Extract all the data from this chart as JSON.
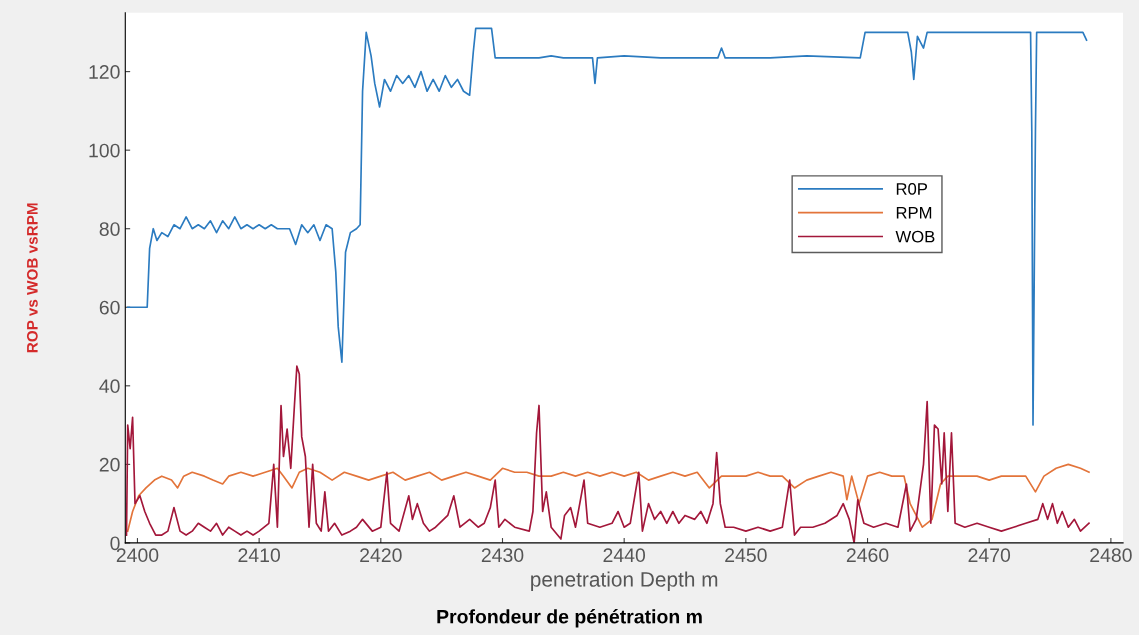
{
  "chart_data": {
    "type": "line",
    "xlabel": "penetration Depth m",
    "ylabel": "ROP vs WOB vsRPM",
    "annotations": [
      "Profondeur de pénétration m"
    ],
    "xlim": [
      2399,
      2481
    ],
    "ylim": [
      0,
      135
    ],
    "xticks": [
      2400,
      2410,
      2420,
      2430,
      2440,
      2450,
      2460,
      2470,
      2480
    ],
    "yticks": [
      0,
      20,
      40,
      60,
      80,
      100,
      120
    ],
    "grid": false,
    "legend": "right",
    "marker": "none",
    "line_style": "solid",
    "series": [
      {
        "name": "R0P",
        "color": "#2b7bc0",
        "x": [
          2399.2,
          2400.8,
          2401.0,
          2401.3,
          2401.6,
          2402,
          2402.5,
          2403,
          2403.5,
          2404,
          2404.5,
          2405,
          2405.5,
          2406,
          2406.5,
          2407,
          2407.5,
          2408,
          2408.5,
          2409,
          2409.5,
          2410,
          2410.5,
          2411,
          2411.5,
          2412,
          2412.5,
          2413,
          2413.5,
          2414,
          2414.5,
          2415,
          2415.5,
          2416,
          2416.3,
          2416.5,
          2416.8,
          2417.1,
          2417.5,
          2418,
          2418.3,
          2418.5,
          2418.8,
          2419.2,
          2419.5,
          2419.9,
          2420.3,
          2420.8,
          2421.3,
          2421.8,
          2422.3,
          2422.8,
          2423.3,
          2423.8,
          2424.3,
          2424.8,
          2425.3,
          2425.8,
          2426.3,
          2426.8,
          2427.3,
          2427.6,
          2427.8,
          2429.1,
          2429.4,
          2433,
          2434,
          2435,
          2437.4,
          2437.6,
          2437.8,
          2440,
          2443,
          2447.7,
          2448,
          2448.3,
          2452,
          2455,
          2459.4,
          2459.8,
          2463.3,
          2463.6,
          2463.8,
          2464.1,
          2464.6,
          2464.9,
          2473.4,
          2473.5,
          2473.6,
          2473.8,
          2473.9,
          2477.7,
          2478
        ],
        "values": [
          60,
          60,
          75,
          80,
          77,
          79,
          78,
          81,
          80,
          83,
          80,
          81,
          80,
          82,
          79,
          82,
          80,
          83,
          80,
          81,
          80,
          81,
          80,
          81,
          80,
          80,
          80,
          76,
          81,
          79,
          81,
          77,
          81,
          80,
          69,
          55,
          46,
          74,
          79,
          80,
          81,
          115,
          130,
          124,
          117,
          111,
          118,
          115,
          119,
          117,
          119,
          116,
          120,
          115,
          118,
          115,
          119,
          116,
          118,
          115,
          114,
          125,
          131,
          131,
          123.5,
          123.5,
          124,
          123.5,
          123.5,
          117,
          123.5,
          124,
          123.5,
          123.5,
          126,
          123.5,
          123.5,
          124,
          123.5,
          130,
          130,
          125,
          118,
          129,
          126,
          130,
          130,
          105,
          30,
          105,
          130,
          130,
          128
        ]
      },
      {
        "name": "RPM",
        "color": "#e3743a",
        "x": [
          2399.2,
          2399.6,
          2400.1,
          2400.7,
          2401.4,
          2402,
          2402.8,
          2403.3,
          2403.8,
          2404.5,
          2405.5,
          2406.2,
          2407,
          2407.5,
          2408.5,
          2409.5,
          2410.5,
          2411.5,
          2412,
          2412.7,
          2413.3,
          2414,
          2415,
          2416,
          2417,
          2418,
          2419,
          2420,
          2421,
          2422,
          2423,
          2424,
          2425,
          2426,
          2427,
          2428,
          2429,
          2430,
          2431,
          2432,
          2433,
          2434,
          2435,
          2436,
          2437,
          2438,
          2439,
          2440,
          2441,
          2442,
          2443,
          2444,
          2445,
          2446,
          2447,
          2448,
          2449,
          2450,
          2451,
          2452,
          2453,
          2454,
          2455,
          2456,
          2457,
          2458,
          2458.3,
          2458.7,
          2459.3,
          2460,
          2461,
          2462,
          2463,
          2463.5,
          2464.5,
          2465.3,
          2466,
          2466.6,
          2468,
          2469,
          2470,
          2471,
          2472,
          2473,
          2473.8,
          2474.5,
          2475.5,
          2476.5,
          2477.5,
          2478.2
        ],
        "values": [
          3,
          8,
          12,
          14,
          16,
          17,
          16,
          14,
          17,
          18,
          17,
          16,
          15,
          17,
          18,
          17,
          18,
          19,
          17,
          14,
          18,
          19,
          18,
          16,
          18,
          17,
          16,
          17,
          18,
          16,
          17,
          18,
          16,
          17,
          18,
          17,
          16,
          19,
          18,
          18,
          17,
          17,
          18,
          17,
          18,
          17,
          18,
          17,
          18,
          16,
          17,
          18,
          17,
          18,
          14,
          17,
          17,
          17,
          18,
          17,
          17,
          14,
          16,
          17,
          18,
          17,
          11,
          17,
          10,
          17,
          18,
          17,
          17,
          10,
          4,
          6,
          15,
          17,
          17,
          17,
          16,
          17,
          17,
          17,
          13,
          17,
          19,
          20,
          19,
          18
        ]
      },
      {
        "name": "WOB",
        "color": "#a3173a",
        "x": [
          2399.1,
          2399.2,
          2399.4,
          2399.6,
          2399.8,
          2400.2,
          2400.6,
          2401,
          2401.5,
          2402,
          2402.5,
          2403,
          2403.5,
          2404,
          2404.5,
          2405,
          2405.5,
          2406,
          2406.5,
          2407,
          2407.5,
          2408,
          2408.5,
          2409,
          2409.5,
          2410,
          2410.8,
          2411.2,
          2411.5,
          2411.8,
          2412,
          2412.3,
          2412.6,
          2412.9,
          2413.1,
          2413.3,
          2413.5,
          2413.8,
          2414.1,
          2414.4,
          2414.7,
          2415.1,
          2415.4,
          2415.7,
          2416.2,
          2416.8,
          2417.5,
          2418,
          2418.5,
          2419.3,
          2420,
          2420.5,
          2420.8,
          2421.5,
          2422.3,
          2422.6,
          2423,
          2423.5,
          2424,
          2424.5,
          2425.5,
          2426,
          2426.5,
          2427.3,
          2428,
          2428.5,
          2429,
          2429.4,
          2429.7,
          2430.2,
          2431,
          2432.2,
          2432.5,
          2432.8,
          2433,
          2433.3,
          2433.6,
          2434,
          2434.8,
          2435.1,
          2435.6,
          2436,
          2436.7,
          2437,
          2438,
          2439,
          2439.5,
          2440,
          2440.5,
          2441.2,
          2441.5,
          2442,
          2442.5,
          2443,
          2443.5,
          2444,
          2444.5,
          2445,
          2445.8,
          2446.3,
          2446.8,
          2447.3,
          2447.6,
          2447.9,
          2448.3,
          2449,
          2450,
          2451,
          2452,
          2453,
          2453.6,
          2454,
          2454.5,
          2455.5,
          2456.5,
          2457.5,
          2458,
          2458.5,
          2458.9,
          2459.2,
          2459.7,
          2460.5,
          2461.5,
          2462.5,
          2463.2,
          2463.5,
          2464,
          2464.6,
          2464.9,
          2465.2,
          2465.5,
          2465.8,
          2466.1,
          2466.3,
          2466.6,
          2466.9,
          2467.2,
          2468,
          2469,
          2470,
          2471,
          2472,
          2473,
          2474,
          2474.4,
          2474.8,
          2475.2,
          2475.6,
          2476,
          2476.5,
          2477,
          2477.5,
          2478.2
        ],
        "values": [
          2,
          30,
          24,
          32,
          10,
          12,
          8,
          5,
          2,
          2,
          3,
          9,
          3,
          2,
          3,
          5,
          4,
          3,
          5,
          2,
          4,
          3,
          2,
          3,
          2,
          3,
          5,
          20,
          4,
          35,
          22,
          29,
          19,
          35,
          45,
          43,
          27,
          22,
          4,
          20,
          5,
          3,
          13,
          3,
          5,
          2,
          3,
          4,
          6,
          3,
          4,
          18,
          5,
          3,
          12,
          6,
          10,
          5,
          3,
          4,
          7,
          12,
          4,
          6,
          4,
          5,
          9,
          16,
          4,
          6,
          4,
          3,
          8,
          28,
          35,
          8,
          13,
          4,
          1,
          7,
          9,
          4,
          16,
          5,
          4,
          5,
          8,
          4,
          5,
          18,
          3,
          10,
          6,
          8,
          5,
          8,
          5,
          7,
          6,
          8,
          5,
          10,
          23,
          10,
          4,
          4,
          3,
          4,
          3,
          4,
          16,
          2,
          4,
          4,
          5,
          7,
          10,
          6,
          0,
          11,
          5,
          4,
          5,
          4,
          15,
          3,
          6,
          20,
          36,
          5,
          30,
          29,
          15,
          28,
          8,
          28,
          5,
          4,
          5,
          4,
          3,
          4,
          5,
          6,
          10,
          6,
          10,
          5,
          8,
          4,
          6,
          3,
          5
        ]
      }
    ]
  }
}
